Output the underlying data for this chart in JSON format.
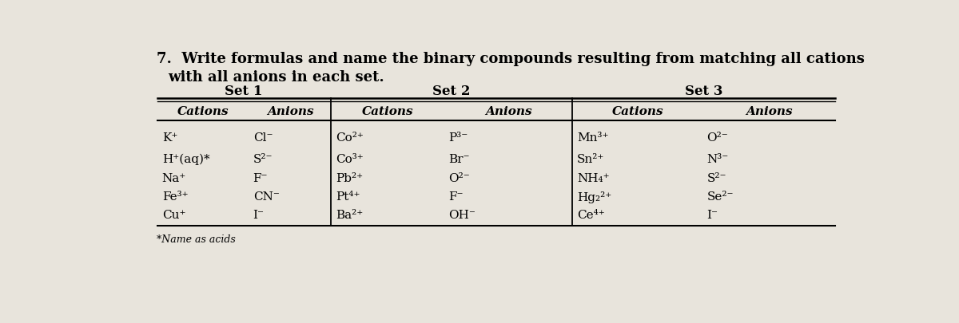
{
  "title_line1": "7.  Write formulas and name the binary compounds resulting from matching all cations",
  "title_line2": "    with all anions in each set.",
  "footnote": "*Name as acids",
  "bg_color": "#e8e4dc",
  "set1_label": "Set 1",
  "set2_label": "Set 2",
  "set3_label": "Set 3",
  "col_headers": [
    "Cations",
    "Anions",
    "Cations",
    "Anions",
    "Cations",
    "Anions"
  ],
  "set1_cations": [
    "K⁺",
    "H⁺(aq)*",
    "Na⁺",
    "Fe³⁺",
    "Cu⁺"
  ],
  "set1_anions": [
    "Cl⁻",
    "S²⁻",
    "F⁻",
    "CN⁻",
    "I⁻"
  ],
  "set2_cations": [
    "Co²⁺",
    "Co³⁺",
    "Pb²⁺",
    "Pt⁴⁺",
    "Ba²⁺"
  ],
  "set2_anions": [
    "P³⁻",
    "Br⁻",
    "O²⁻",
    "F⁻",
    "OH⁻"
  ],
  "set3_cations": [
    "Mn³⁺",
    "Sn²⁺",
    "NH₄⁺",
    "Hg₂²⁺",
    "Ce⁴⁺"
  ],
  "set3_anions": [
    "O²⁻",
    "N³⁻",
    "S²⁻",
    "Se²⁻",
    "I⁻"
  ],
  "title_fontsize": 13,
  "header_fontsize": 11,
  "data_fontsize": 11,
  "footnote_fontsize": 9
}
